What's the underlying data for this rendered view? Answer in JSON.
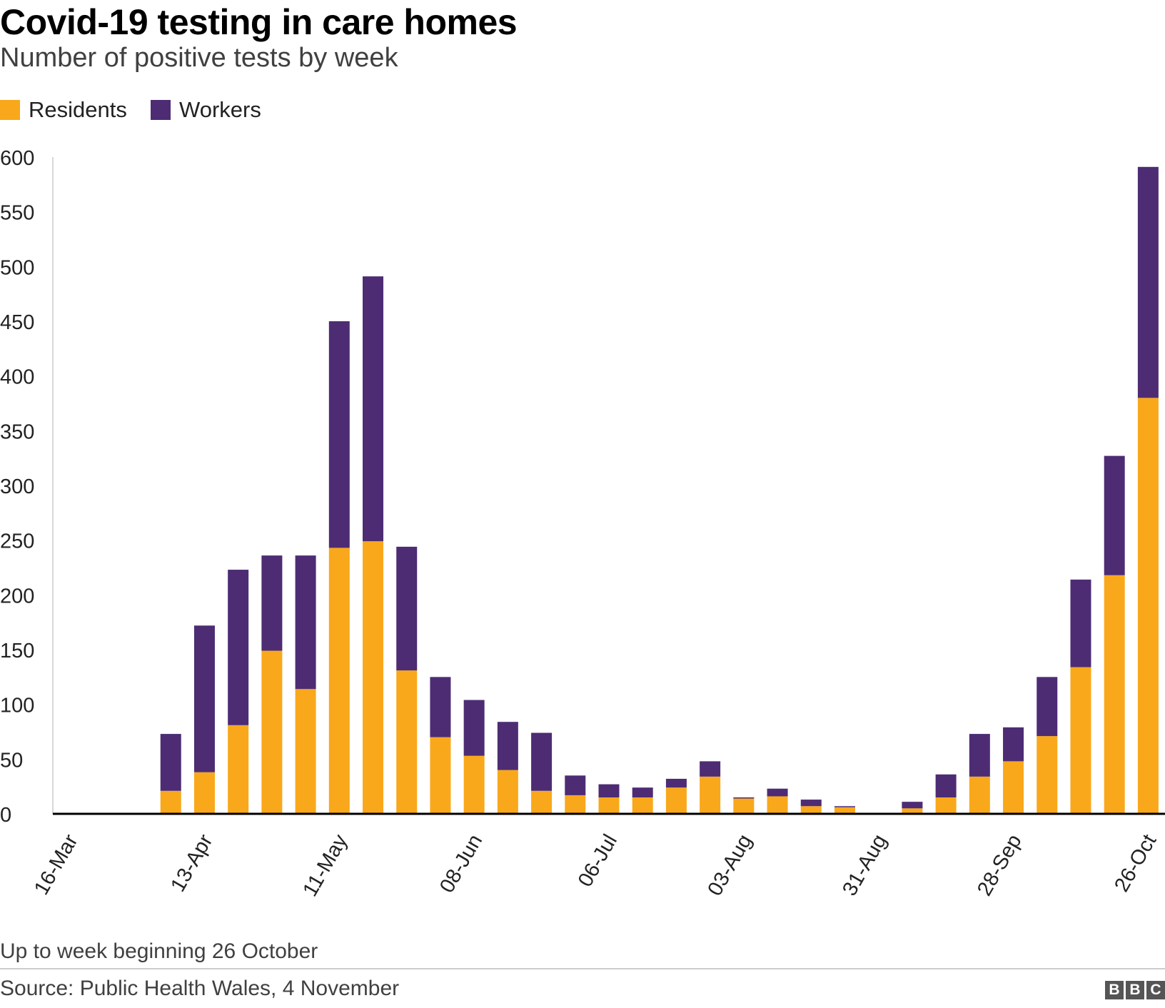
{
  "title": "Covid-19 testing in care homes",
  "subtitle": "Number of positive tests by week",
  "legend": [
    {
      "label": "Residents",
      "color": "#f9a81b"
    },
    {
      "label": "Workers",
      "color": "#4d2c74"
    }
  ],
  "footnote": "Up to week beginning 26 October",
  "source": "Source: Public Health Wales, 4 November",
  "logo": [
    "B",
    "B",
    "C"
  ],
  "chart_data": {
    "type": "bar",
    "stacked": true,
    "title": "Covid-19 testing in care homes",
    "subtitle": "Number of positive tests by week",
    "xlabel": "",
    "ylabel": "",
    "ylim": [
      0,
      600
    ],
    "yticks": [
      0,
      50,
      100,
      150,
      200,
      250,
      300,
      350,
      400,
      450,
      500,
      550,
      600
    ],
    "grid": false,
    "legend_position": "top-left",
    "categories": [
      "16-Mar",
      "23-Mar",
      "30-Mar",
      "06-Apr",
      "13-Apr",
      "20-Apr",
      "27-Apr",
      "04-May",
      "11-May",
      "18-May",
      "25-May",
      "01-Jun",
      "08-Jun",
      "15-Jun",
      "22-Jun",
      "29-Jun",
      "06-Jul",
      "13-Jul",
      "20-Jul",
      "27-Jul",
      "03-Aug",
      "10-Aug",
      "17-Aug",
      "24-Aug",
      "31-Aug",
      "07-Sep",
      "14-Sep",
      "21-Sep",
      "28-Sep",
      "05-Oct",
      "12-Oct",
      "19-Oct",
      "26-Oct"
    ],
    "tick_labels": [
      "16-Mar",
      "13-Apr",
      "11-May",
      "08-Jun",
      "06-Jul",
      "03-Aug",
      "31-Aug",
      "28-Sep",
      "26-Oct"
    ],
    "series": [
      {
        "name": "Residents",
        "color": "#f9a81b",
        "values": [
          0,
          0,
          0,
          21,
          38,
          81,
          149,
          114,
          243,
          249,
          131,
          70,
          53,
          40,
          21,
          17,
          15,
          15,
          24,
          34,
          14,
          16,
          7,
          6,
          0,
          5,
          15,
          34,
          48,
          71,
          134,
          218,
          380
        ]
      },
      {
        "name": "Workers",
        "color": "#4d2c74",
        "values": [
          0,
          0,
          0,
          52,
          134,
          142,
          87,
          122,
          207,
          242,
          113,
          55,
          51,
          44,
          53,
          18,
          12,
          9,
          8,
          14,
          1,
          7,
          6,
          1,
          0,
          6,
          21,
          39,
          31,
          54,
          80,
          109,
          211
        ]
      }
    ]
  }
}
